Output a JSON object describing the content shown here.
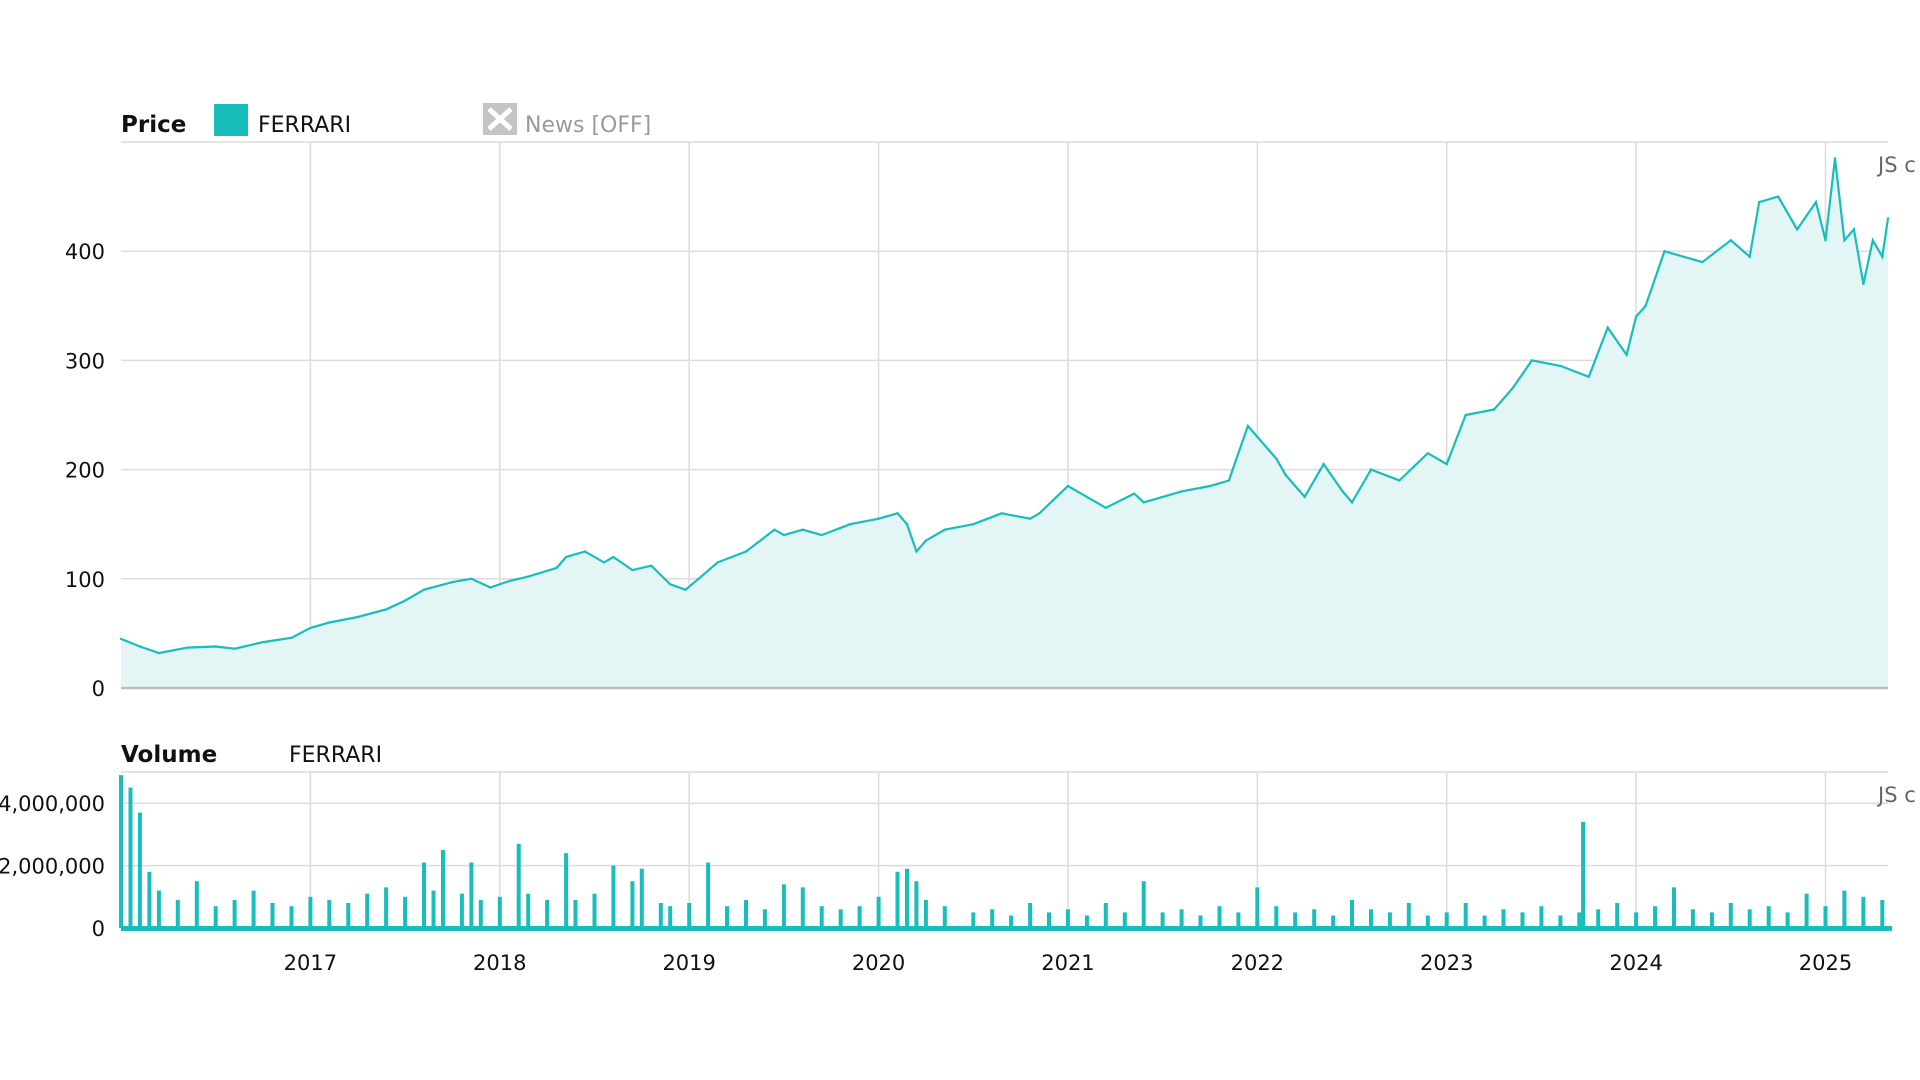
{
  "colors": {
    "series": "#17bebb",
    "area_fill": "#e3f6f5",
    "grid": "#dcdcdc",
    "news_icon": "#c4c4c4"
  },
  "legend": {
    "price_label": "Price",
    "series_name": "FERRARI",
    "news_label": "News [OFF]",
    "news_icon": "close-x-icon"
  },
  "volume_panel": {
    "label": "Volume",
    "series_name": "FERRARI"
  },
  "watermark": "JS c",
  "chart_data": [
    {
      "type": "area",
      "title": "Price",
      "series_name": "FERRARI",
      "ylim": [
        0,
        500
      ],
      "yticks": [
        "0",
        "100",
        "200",
        "300",
        "400"
      ],
      "xticks": [
        "2017",
        "2018",
        "2019",
        "2020",
        "2021",
        "2022",
        "2023",
        "2024",
        "2025"
      ],
      "x_range": [
        2016.0,
        2025.33
      ],
      "x": [
        2016.0,
        2016.1,
        2016.2,
        2016.35,
        2016.5,
        2016.6,
        2016.75,
        2016.9,
        2017.0,
        2017.1,
        2017.25,
        2017.4,
        2017.5,
        2017.6,
        2017.75,
        2017.85,
        2017.95,
        2018.05,
        2018.15,
        2018.3,
        2018.35,
        2018.45,
        2018.55,
        2018.6,
        2018.7,
        2018.8,
        2018.9,
        2018.98,
        2019.05,
        2019.15,
        2019.3,
        2019.45,
        2019.5,
        2019.6,
        2019.7,
        2019.85,
        2020.0,
        2020.1,
        2020.15,
        2020.2,
        2020.25,
        2020.35,
        2020.5,
        2020.65,
        2020.8,
        2020.85,
        2021.0,
        2021.1,
        2021.2,
        2021.35,
        2021.4,
        2021.5,
        2021.6,
        2021.75,
        2021.85,
        2021.95,
        2022.0,
        2022.1,
        2022.15,
        2022.25,
        2022.35,
        2022.45,
        2022.5,
        2022.6,
        2022.75,
        2022.9,
        2023.0,
        2023.1,
        2023.25,
        2023.35,
        2023.45,
        2023.6,
        2023.75,
        2023.85,
        2023.95,
        2024.0,
        2024.05,
        2024.15,
        2024.25,
        2024.35,
        2024.5,
        2024.6,
        2024.65,
        2024.75,
        2024.85,
        2024.95,
        2025.0,
        2025.05,
        2025.1,
        2025.15,
        2025.2,
        2025.25,
        2025.3,
        2025.33
      ],
      "values": [
        45,
        38,
        32,
        37,
        38,
        36,
        42,
        46,
        55,
        60,
        65,
        72,
        80,
        90,
        97,
        100,
        92,
        98,
        102,
        110,
        120,
        125,
        115,
        120,
        108,
        112,
        95,
        90,
        100,
        115,
        125,
        145,
        140,
        145,
        140,
        150,
        155,
        160,
        150,
        125,
        135,
        145,
        150,
        160,
        155,
        160,
        185,
        175,
        165,
        178,
        170,
        175,
        180,
        185,
        190,
        240,
        230,
        210,
        195,
        175,
        205,
        180,
        170,
        200,
        190,
        215,
        205,
        250,
        255,
        275,
        300,
        295,
        285,
        330,
        305,
        340,
        350,
        400,
        395,
        390,
        410,
        395,
        445,
        450,
        420,
        445,
        410,
        485,
        410,
        420,
        370,
        410,
        395,
        430
      ]
    },
    {
      "type": "bar",
      "title": "Volume",
      "series_name": "FERRARI",
      "ylim": [
        0,
        5000000
      ],
      "yticks": [
        "0",
        "2,000,000",
        "4,000,000"
      ],
      "xticks": [
        "2017",
        "2018",
        "2019",
        "2020",
        "2021",
        "2022",
        "2023",
        "2024",
        "2025"
      ],
      "x_range": [
        2016.0,
        2025.33
      ],
      "x": [
        2016.0,
        2016.05,
        2016.1,
        2016.15,
        2016.2,
        2016.3,
        2016.4,
        2016.5,
        2016.6,
        2016.7,
        2016.8,
        2016.9,
        2017.0,
        2017.1,
        2017.2,
        2017.3,
        2017.4,
        2017.5,
        2017.6,
        2017.65,
        2017.7,
        2017.8,
        2017.85,
        2017.9,
        2018.0,
        2018.1,
        2018.15,
        2018.25,
        2018.35,
        2018.4,
        2018.5,
        2018.6,
        2018.7,
        2018.75,
        2018.85,
        2018.9,
        2019.0,
        2019.1,
        2019.2,
        2019.3,
        2019.4,
        2019.5,
        2019.6,
        2019.7,
        2019.8,
        2019.9,
        2020.0,
        2020.1,
        2020.15,
        2020.2,
        2020.25,
        2020.35,
        2020.5,
        2020.6,
        2020.7,
        2020.8,
        2020.9,
        2021.0,
        2021.1,
        2021.2,
        2021.3,
        2021.4,
        2021.5,
        2021.6,
        2021.7,
        2021.8,
        2021.9,
        2022.0,
        2022.1,
        2022.2,
        2022.3,
        2022.4,
        2022.5,
        2022.6,
        2022.7,
        2022.8,
        2022.9,
        2023.0,
        2023.1,
        2023.2,
        2023.3,
        2023.4,
        2023.5,
        2023.6,
        2023.7,
        2023.72,
        2023.8,
        2023.9,
        2024.0,
        2024.1,
        2024.2,
        2024.3,
        2024.4,
        2024.5,
        2024.6,
        2024.7,
        2024.8,
        2024.9,
        2025.0,
        2025.1,
        2025.2,
        2025.3
      ],
      "values": [
        4900000,
        4500000,
        3700000,
        1800000,
        1200000,
        900000,
        1500000,
        700000,
        900000,
        1200000,
        800000,
        700000,
        1000000,
        900000,
        800000,
        1100000,
        1300000,
        1000000,
        2100000,
        1200000,
        2500000,
        1100000,
        2100000,
        900000,
        1000000,
        2700000,
        1100000,
        900000,
        2400000,
        900000,
        1100000,
        2000000,
        1500000,
        1900000,
        800000,
        700000,
        800000,
        2100000,
        700000,
        900000,
        600000,
        1400000,
        1300000,
        700000,
        600000,
        700000,
        1000000,
        1800000,
        1900000,
        1500000,
        900000,
        700000,
        500000,
        600000,
        400000,
        800000,
        500000,
        600000,
        400000,
        800000,
        500000,
        1500000,
        500000,
        600000,
        400000,
        700000,
        500000,
        1300000,
        700000,
        500000,
        600000,
        400000,
        900000,
        600000,
        500000,
        800000,
        400000,
        500000,
        800000,
        400000,
        600000,
        500000,
        700000,
        400000,
        500000,
        3400000,
        600000,
        800000,
        500000,
        700000,
        1300000,
        600000,
        500000,
        800000,
        600000,
        700000,
        500000,
        1100000,
        700000,
        1200000,
        1000000,
        900000
      ]
    }
  ]
}
